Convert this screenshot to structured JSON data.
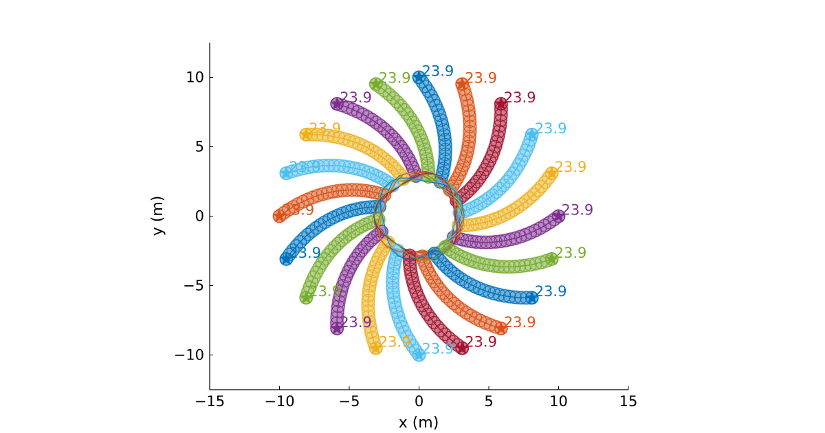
{
  "chart_data": {
    "type": "scatter",
    "xlabel": "x (m)",
    "ylabel": "y (m)",
    "xlim": [
      -15,
      15
    ],
    "ylim": [
      -12.5,
      12.5
    ],
    "xticks": [
      "−15",
      "−10",
      "−5",
      "0",
      "5",
      "10",
      "15"
    ],
    "xtick_values": [
      -15,
      -10,
      -5,
      0,
      5,
      10,
      15
    ],
    "yticks": [
      "10",
      "5",
      "0",
      "−5",
      "−10"
    ],
    "ytick_values": [
      10,
      5,
      0,
      -5,
      -10
    ],
    "grid": false,
    "circle_radius": 10,
    "agent_label": "23.9",
    "agents": [
      {
        "start_angle_deg": 0,
        "color": "#7E2F8E"
      },
      {
        "start_angle_deg": 18,
        "color": "#EDB120"
      },
      {
        "start_angle_deg": 36,
        "color": "#4DBEEE"
      },
      {
        "start_angle_deg": 54,
        "color": "#A2142F"
      },
      {
        "start_angle_deg": 72,
        "color": "#D95319"
      },
      {
        "start_angle_deg": 90,
        "color": "#0072BD"
      },
      {
        "start_angle_deg": 108,
        "color": "#77AC30"
      },
      {
        "start_angle_deg": 126,
        "color": "#7E2F8E"
      },
      {
        "start_angle_deg": 144,
        "color": "#EDB120"
      },
      {
        "start_angle_deg": 162,
        "color": "#4DBEEE"
      },
      {
        "start_angle_deg": 180,
        "color": "#D95319"
      },
      {
        "start_angle_deg": 198,
        "color": "#0072BD"
      },
      {
        "start_angle_deg": 216,
        "color": "#77AC30"
      },
      {
        "start_angle_deg": 234,
        "color": "#7E2F8E"
      },
      {
        "start_angle_deg": 252,
        "color": "#EDB120"
      },
      {
        "start_angle_deg": 270,
        "color": "#4DBEEE"
      },
      {
        "start_angle_deg": 288,
        "color": "#A2142F"
      },
      {
        "start_angle_deg": 306,
        "color": "#D95319"
      },
      {
        "start_angle_deg": 324,
        "color": "#0072BD"
      },
      {
        "start_angle_deg": 342,
        "color": "#77AC30"
      }
    ]
  }
}
